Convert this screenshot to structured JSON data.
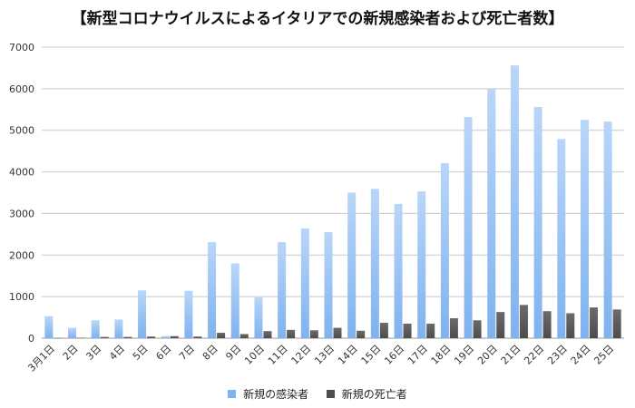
{
  "chart_data": {
    "type": "bar",
    "title": "【新型コロナウイルスによるイタリアでの新規感染者および死亡者数】",
    "xlabel": "",
    "ylabel": "",
    "ylim": [
      0,
      7000
    ],
    "yticks": [
      "0",
      "1000",
      "2000",
      "3000",
      "4000",
      "5000",
      "6000",
      "7000"
    ],
    "grid": true,
    "legend_position": "bottom",
    "categories": [
      "3月1日",
      "2日",
      "3日",
      "4日",
      "5日",
      "6日",
      "7日",
      "8日",
      "9日",
      "10日",
      "11日",
      "12日",
      "13日",
      "14日",
      "15日",
      "16日",
      "17日",
      "18日",
      "19日",
      "20日",
      "21日",
      "22日",
      "23日",
      "24日",
      "25日"
    ],
    "series": [
      {
        "name": "新規の感染者",
        "color": "#7fb2ef",
        "values": [
          530,
          250,
          430,
          450,
          1150,
          50,
          1140,
          2310,
          1800,
          980,
          2310,
          2640,
          2550,
          3500,
          3590,
          3230,
          3530,
          4210,
          5320,
          5990,
          6560,
          5560,
          4790,
          5250,
          5210
        ]
      },
      {
        "name": "新規の死亡者",
        "color": "#4d4d4d",
        "values": [
          5,
          10,
          30,
          30,
          40,
          50,
          40,
          130,
          100,
          170,
          200,
          190,
          250,
          180,
          370,
          350,
          350,
          480,
          430,
          630,
          800,
          650,
          600,
          740,
          690
        ]
      }
    ]
  }
}
